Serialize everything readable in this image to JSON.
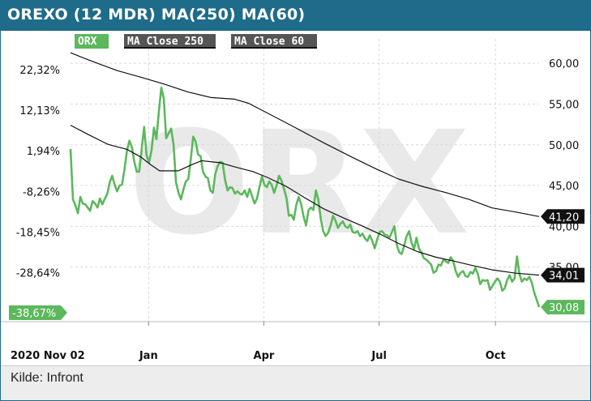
{
  "header": {
    "title": "OREXO (12 MDR) MA(250) MA(60)"
  },
  "footer": {
    "source": "Kilde: Infront"
  },
  "watermark": "ORX",
  "colors": {
    "header_bg": "#1f6b8a",
    "price": "#5cb85c",
    "ma": "#111111",
    "grid": "#dddddd"
  },
  "chart_data": {
    "type": "line",
    "start_label": "2020 Nov 02",
    "legend": [
      {
        "label": "ORX",
        "color": "#5cb85c"
      },
      {
        "label": "MA Close 250",
        "color": "#111111"
      },
      {
        "label": "MA Close 60",
        "color": "#111111"
      }
    ],
    "x_ticks": [
      {
        "label": "Jan",
        "t": 0.1666
      },
      {
        "label": "Apr",
        "t": 0.4125
      },
      {
        "label": "Jul",
        "t": 0.6586
      },
      {
        "label": "Oct",
        "t": 0.9069
      }
    ],
    "left_axis": {
      "unit": "%",
      "ticks": [
        "22,32%",
        "12,13%",
        "1,94%",
        "-8,26%",
        "-18,45%",
        "-28,64%"
      ],
      "ylim": [
        -40.7,
        30.0
      ]
    },
    "right_axis": {
      "ticks": [
        "60,00",
        "55,00",
        "50,00",
        "45,00",
        "40,00",
        "35,00"
      ],
      "ylim": [
        28.4,
        63.0
      ]
    },
    "last_values": {
      "price_pct": "-38,67%",
      "price": "30,08",
      "ma250": "41,20",
      "ma60": "34,01"
    },
    "series": [
      {
        "name": "ORX",
        "axis": "right",
        "points": [
          [
            0.0,
            49.5
          ],
          [
            0.0052,
            43.3
          ],
          [
            0.0104,
            42.6
          ],
          [
            0.0157,
            41.6
          ],
          [
            0.0209,
            43.6
          ],
          [
            0.0262,
            42.8
          ],
          [
            0.0314,
            42.7
          ],
          [
            0.0366,
            42.3
          ],
          [
            0.0419,
            41.9
          ],
          [
            0.0471,
            43.1
          ],
          [
            0.0523,
            42.8
          ],
          [
            0.0576,
            42.3
          ],
          [
            0.0628,
            43.4
          ],
          [
            0.068,
            42.7
          ],
          [
            0.0733,
            43.4
          ],
          [
            0.0785,
            44.0
          ],
          [
            0.0838,
            45.4
          ],
          [
            0.089,
            46.2
          ],
          [
            0.0942,
            45.1
          ],
          [
            0.0995,
            44.3
          ],
          [
            0.1047,
            45.0
          ],
          [
            0.1099,
            45.1
          ],
          [
            0.1152,
            47.0
          ],
          [
            0.1204,
            49.3
          ],
          [
            0.1256,
            50.5
          ],
          [
            0.1309,
            49.7
          ],
          [
            0.1361,
            47.9
          ],
          [
            0.1414,
            46.7
          ],
          [
            0.1466,
            46.7
          ],
          [
            0.1518,
            49.4
          ],
          [
            0.1571,
            52.2
          ],
          [
            0.1623,
            48.7
          ],
          [
            0.1675,
            47.8
          ],
          [
            0.1728,
            49.3
          ],
          [
            0.178,
            52.1
          ],
          [
            0.1832,
            50.7
          ],
          [
            0.1885,
            54.1
          ],
          [
            0.1937,
            57.0
          ],
          [
            0.1989,
            55.7
          ],
          [
            0.2042,
            50.8
          ],
          [
            0.2094,
            51.4
          ],
          [
            0.2147,
            52.0
          ],
          [
            0.2199,
            50.0
          ],
          [
            0.2251,
            45.4
          ],
          [
            0.2304,
            44.1
          ],
          [
            0.2356,
            43.3
          ],
          [
            0.2408,
            44.5
          ],
          [
            0.2461,
            45.5
          ],
          [
            0.2513,
            45.8
          ],
          [
            0.2565,
            48.2
          ],
          [
            0.2618,
            51.0
          ],
          [
            0.267,
            50.4
          ],
          [
            0.2723,
            48.8
          ],
          [
            0.2775,
            48.6
          ],
          [
            0.2827,
            46.7
          ],
          [
            0.288,
            46.1
          ],
          [
            0.2932,
            45.9
          ],
          [
            0.2984,
            44.4
          ],
          [
            0.3037,
            44.1
          ],
          [
            0.3089,
            46.4
          ],
          [
            0.3141,
            47.4
          ],
          [
            0.3194,
            47.9
          ],
          [
            0.3246,
            47.8
          ],
          [
            0.3298,
            45.7
          ],
          [
            0.3351,
            44.4
          ],
          [
            0.3403,
            44.8
          ],
          [
            0.3455,
            44.7
          ],
          [
            0.3508,
            44.0
          ],
          [
            0.356,
            44.3
          ],
          [
            0.3613,
            44.0
          ],
          [
            0.3665,
            43.9
          ],
          [
            0.3717,
            44.4
          ],
          [
            0.377,
            43.6
          ],
          [
            0.3822,
            44.6
          ],
          [
            0.3874,
            43.7
          ],
          [
            0.3927,
            42.8
          ],
          [
            0.3979,
            43.4
          ],
          [
            0.4031,
            44.8
          ],
          [
            0.4084,
            46.1
          ],
          [
            0.4136,
            45.1
          ],
          [
            0.4189,
            44.8
          ],
          [
            0.4241,
            45.5
          ],
          [
            0.4293,
            45.1
          ],
          [
            0.4346,
            44.1
          ],
          [
            0.4398,
            45.0
          ],
          [
            0.445,
            46.2
          ],
          [
            0.4503,
            45.6
          ],
          [
            0.4555,
            44.6
          ],
          [
            0.4607,
            43.5
          ],
          [
            0.466,
            41.3
          ],
          [
            0.4712,
            41.4
          ],
          [
            0.4764,
            40.8
          ],
          [
            0.4817,
            42.6
          ],
          [
            0.4869,
            43.6
          ],
          [
            0.4922,
            42.7
          ],
          [
            0.4974,
            41.2
          ],
          [
            0.5026,
            40.1
          ],
          [
            0.5079,
            42.0
          ],
          [
            0.5131,
            42.3
          ],
          [
            0.5183,
            42.0
          ],
          [
            0.5236,
            44.4
          ],
          [
            0.5288,
            43.3
          ],
          [
            0.534,
            40.9
          ],
          [
            0.5393,
            39.4
          ],
          [
            0.5445,
            38.8
          ],
          [
            0.5497,
            39.2
          ],
          [
            0.555,
            40.1
          ],
          [
            0.5602,
            41.3
          ],
          [
            0.5654,
            40.7
          ],
          [
            0.5707,
            39.8
          ],
          [
            0.5759,
            40.3
          ],
          [
            0.5812,
            40.6
          ],
          [
            0.5864,
            40.0
          ],
          [
            0.5916,
            39.8
          ],
          [
            0.5969,
            40.2
          ],
          [
            0.6021,
            39.3
          ],
          [
            0.6073,
            39.2
          ],
          [
            0.6126,
            39.4
          ],
          [
            0.6178,
            38.8
          ],
          [
            0.623,
            39.1
          ],
          [
            0.6283,
            38.5
          ],
          [
            0.6335,
            38.2
          ],
          [
            0.6387,
            38.9
          ],
          [
            0.644,
            38.2
          ],
          [
            0.6492,
            37.3
          ],
          [
            0.6545,
            38.4
          ],
          [
            0.6597,
            39.3
          ],
          [
            0.6649,
            39.4
          ],
          [
            0.6702,
            39.0
          ],
          [
            0.6754,
            38.9
          ],
          [
            0.6806,
            38.6
          ],
          [
            0.6859,
            39.3
          ],
          [
            0.6911,
            40.0
          ],
          [
            0.6963,
            37.7
          ],
          [
            0.7016,
            36.8
          ],
          [
            0.7068,
            36.6
          ],
          [
            0.712,
            37.6
          ],
          [
            0.7173,
            38.8
          ],
          [
            0.7225,
            39.4
          ],
          [
            0.7277,
            38.0
          ],
          [
            0.733,
            37.2
          ],
          [
            0.7382,
            38.6
          ],
          [
            0.7434,
            37.3
          ],
          [
            0.7487,
            36.8
          ],
          [
            0.7539,
            36.1
          ],
          [
            0.7591,
            35.9
          ],
          [
            0.7644,
            35.6
          ],
          [
            0.7696,
            35.3
          ],
          [
            0.7748,
            34.3
          ],
          [
            0.7801,
            34.5
          ],
          [
            0.7853,
            35.3
          ],
          [
            0.7905,
            35.2
          ],
          [
            0.7958,
            35.9
          ],
          [
            0.801,
            35.7
          ],
          [
            0.8063,
            35.5
          ],
          [
            0.8115,
            36.2
          ],
          [
            0.8167,
            35.7
          ],
          [
            0.822,
            34.5
          ],
          [
            0.8272,
            33.8
          ],
          [
            0.8324,
            34.3
          ],
          [
            0.8377,
            34.5
          ],
          [
            0.8429,
            33.9
          ],
          [
            0.8481,
            33.8
          ],
          [
            0.8534,
            34.4
          ],
          [
            0.8586,
            34.2
          ],
          [
            0.8638,
            34.9
          ],
          [
            0.8691,
            34.2
          ],
          [
            0.8743,
            32.9
          ],
          [
            0.8795,
            33.4
          ],
          [
            0.8848,
            33.3
          ],
          [
            0.89,
            33.4
          ],
          [
            0.8952,
            32.2
          ],
          [
            0.9005,
            32.7
          ],
          [
            0.9057,
            33.2
          ],
          [
            0.911,
            33.6
          ],
          [
            0.9162,
            33.2
          ],
          [
            0.9214,
            32.1
          ],
          [
            0.9267,
            32.4
          ],
          [
            0.9319,
            33.4
          ],
          [
            0.9371,
            34.0
          ],
          [
            0.9424,
            33.2
          ],
          [
            0.9476,
            33.6
          ],
          [
            0.9528,
            36.3
          ],
          [
            0.9581,
            34.1
          ],
          [
            0.9633,
            33.2
          ],
          [
            0.9685,
            33.6
          ],
          [
            0.9738,
            33.4
          ],
          [
            0.979,
            33.8
          ],
          [
            0.9842,
            33.1
          ],
          [
            0.9895,
            31.9
          ],
          [
            1.0,
            30.08
          ]
        ]
      },
      {
        "name": "MA Close 250",
        "axis": "right",
        "points": [
          [
            0.0,
            61.3
          ],
          [
            0.03,
            60.6
          ],
          [
            0.06,
            59.95
          ],
          [
            0.1,
            59.1
          ],
          [
            0.15,
            58.3
          ],
          [
            0.2,
            57.45
          ],
          [
            0.25,
            56.5
          ],
          [
            0.3,
            55.8
          ],
          [
            0.35,
            55.6
          ],
          [
            0.38,
            55.1
          ],
          [
            0.42,
            53.9
          ],
          [
            0.48,
            52.1
          ],
          [
            0.54,
            50.25
          ],
          [
            0.6,
            48.5
          ],
          [
            0.65,
            47.1
          ],
          [
            0.7,
            45.8
          ],
          [
            0.75,
            44.9
          ],
          [
            0.8,
            44.15
          ],
          [
            0.85,
            43.3
          ],
          [
            0.9,
            42.25
          ],
          [
            0.95,
            41.75
          ],
          [
            1.0,
            41.2
          ]
        ]
      },
      {
        "name": "MA Close 60",
        "axis": "right",
        "points": [
          [
            0.0,
            52.4
          ],
          [
            0.04,
            51.2
          ],
          [
            0.08,
            50.05
          ],
          [
            0.12,
            49.45
          ],
          [
            0.15,
            48.5
          ],
          [
            0.17,
            47.6
          ],
          [
            0.19,
            46.8
          ],
          [
            0.23,
            46.8
          ],
          [
            0.26,
            47.6
          ],
          [
            0.28,
            48.05
          ],
          [
            0.32,
            47.8
          ],
          [
            0.35,
            47.3
          ],
          [
            0.39,
            46.7
          ],
          [
            0.42,
            46.0
          ],
          [
            0.46,
            44.9
          ],
          [
            0.5,
            43.5
          ],
          [
            0.54,
            42.15
          ],
          [
            0.58,
            41.1
          ],
          [
            0.62,
            40.1
          ],
          [
            0.66,
            39.05
          ],
          [
            0.7,
            37.9
          ],
          [
            0.74,
            36.9
          ],
          [
            0.78,
            36.2
          ],
          [
            0.82,
            35.7
          ],
          [
            0.86,
            35.15
          ],
          [
            0.9,
            34.65
          ],
          [
            0.95,
            34.25
          ],
          [
            1.0,
            34.01
          ]
        ]
      }
    ]
  }
}
